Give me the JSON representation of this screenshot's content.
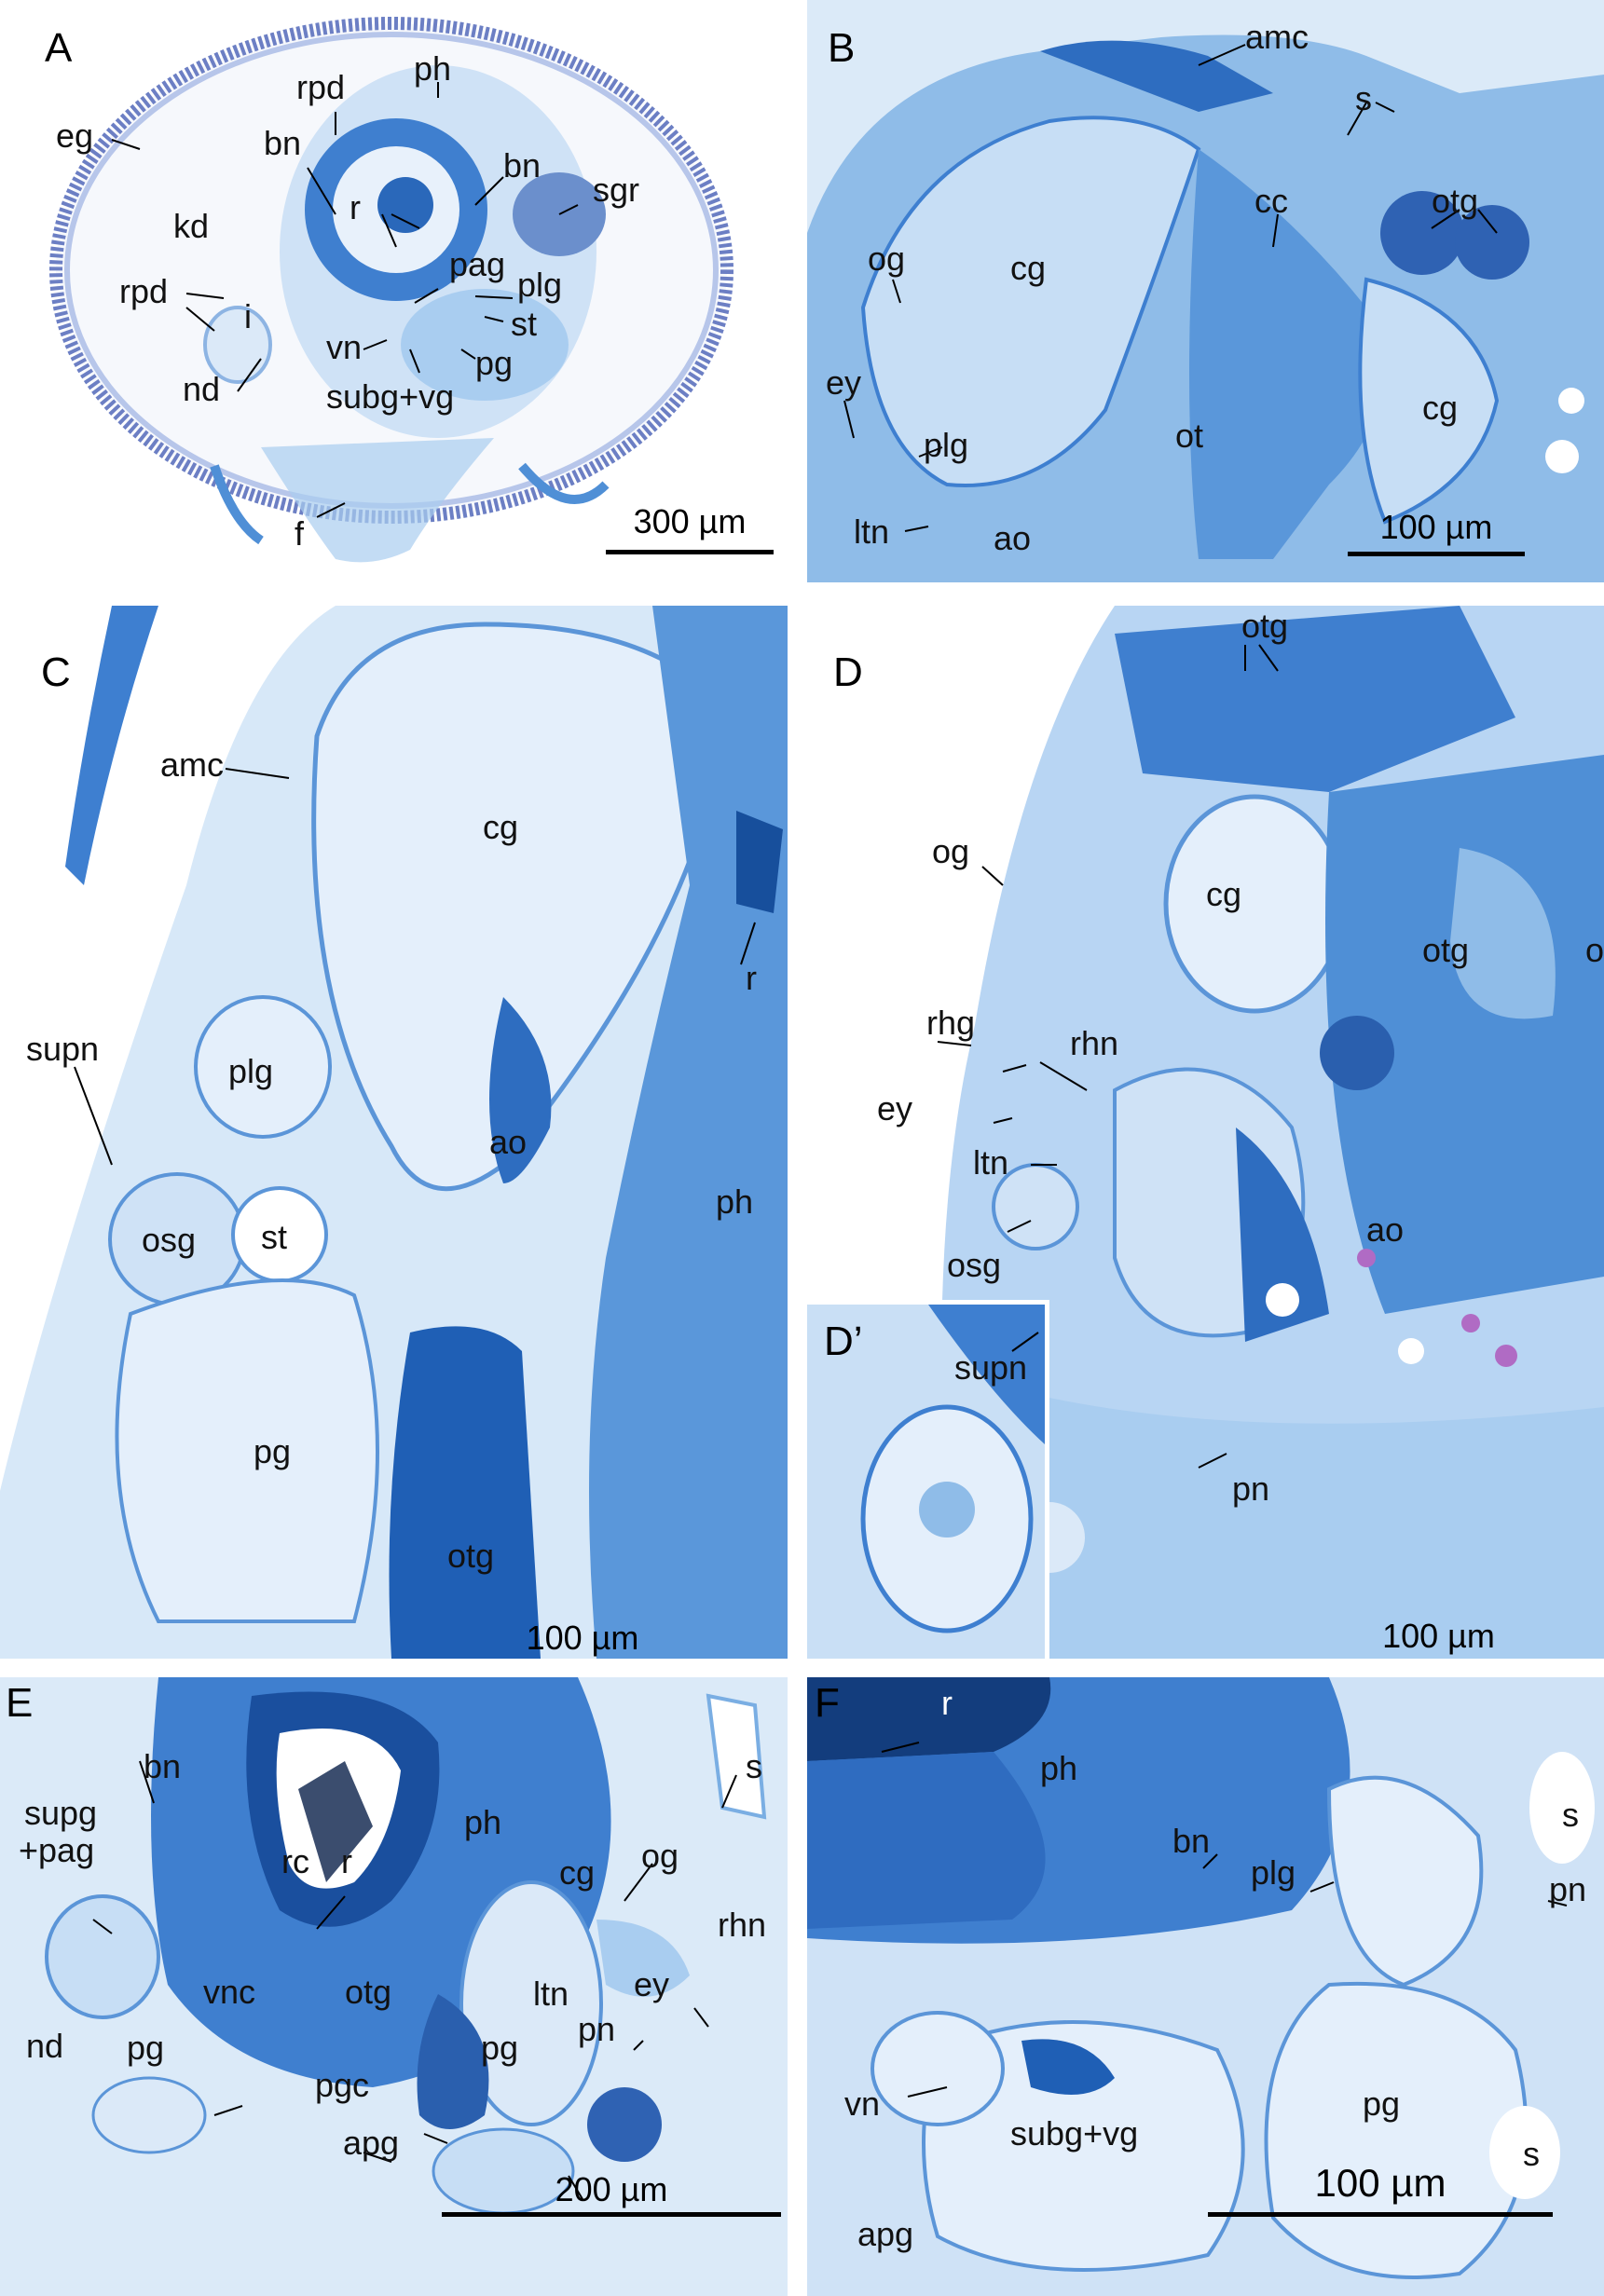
{
  "colors": {
    "stain_dark": "#1d5fb6",
    "stain_mid": "#4f8fd6",
    "stain_light": "#a9cdf0",
    "background": "#ffffff",
    "magenta": "#b06bc4"
  },
  "panels": {
    "A": {
      "letter": "A",
      "scale": "300 µm",
      "labels": {
        "eg": "eg",
        "rpd_top": "rpd",
        "ph": "ph",
        "bn_left": "bn",
        "bn_right": "bn",
        "sgr": "sgr",
        "kd": "kd",
        "r": "r",
        "pag": "pag",
        "plg": "plg",
        "rpd_left": "rpd",
        "i": "i",
        "st": "st",
        "vn": "vn",
        "pg": "pg",
        "nd": "nd",
        "subgvg": "subg+vg",
        "f": "f"
      }
    },
    "B": {
      "letter": "B",
      "scale": "100 µm",
      "labels": {
        "amc": "amc",
        "s": "s",
        "cc": "cc",
        "otg": "otg",
        "og": "og",
        "cg_left": "cg",
        "cg_right": "cg",
        "ey": "ey",
        "plg": "plg",
        "ot": "ot",
        "ltn": "ltn",
        "ao": "ao"
      }
    },
    "C": {
      "letter": "C",
      "scale": "100 µm",
      "labels": {
        "amc": "amc",
        "cg": "cg",
        "r": "r",
        "supn": "supn",
        "plg": "plg",
        "ao": "ao",
        "ph": "ph",
        "osg": "osg",
        "st": "st",
        "pg": "pg",
        "otg": "otg"
      }
    },
    "D": {
      "letter": "D",
      "inset": "D’",
      "scale": "100 µm",
      "labels": {
        "otg_top": "otg",
        "og": "og",
        "cg": "cg",
        "otg_mid": "otg",
        "ot": "ot",
        "rhg": "rhg",
        "rhn": "rhn",
        "ey": "ey",
        "ltn": "ltn",
        "ao": "ao",
        "osg": "osg",
        "supn": "supn",
        "pn": "pn"
      }
    },
    "E": {
      "letter": "E",
      "scale": "200 µm",
      "labels": {
        "bn": "bn",
        "s": "s",
        "supg": "supg",
        "pag": "+pag",
        "ph": "ph",
        "rc": "rc",
        "r": "r",
        "cg": "cg",
        "og": "og",
        "rhn": "rhn",
        "ey": "ey",
        "ltn": "ltn",
        "vnc": "vnc",
        "otg": "otg",
        "nd": "nd",
        "pg_left": "pg",
        "pgc": "pgc",
        "pg_right": "pg",
        "pn": "pn",
        "apg": "apg"
      }
    },
    "F": {
      "letter": "F",
      "scale": "100 µm",
      "labels": {
        "r": "r",
        "ph": "ph",
        "bn": "bn",
        "plg": "plg",
        "s_top": "s",
        "pn": "pn",
        "vn": "vn",
        "subgvg": "subg+vg",
        "pg": "pg",
        "s_bottom": "s",
        "apg": "apg"
      }
    }
  }
}
